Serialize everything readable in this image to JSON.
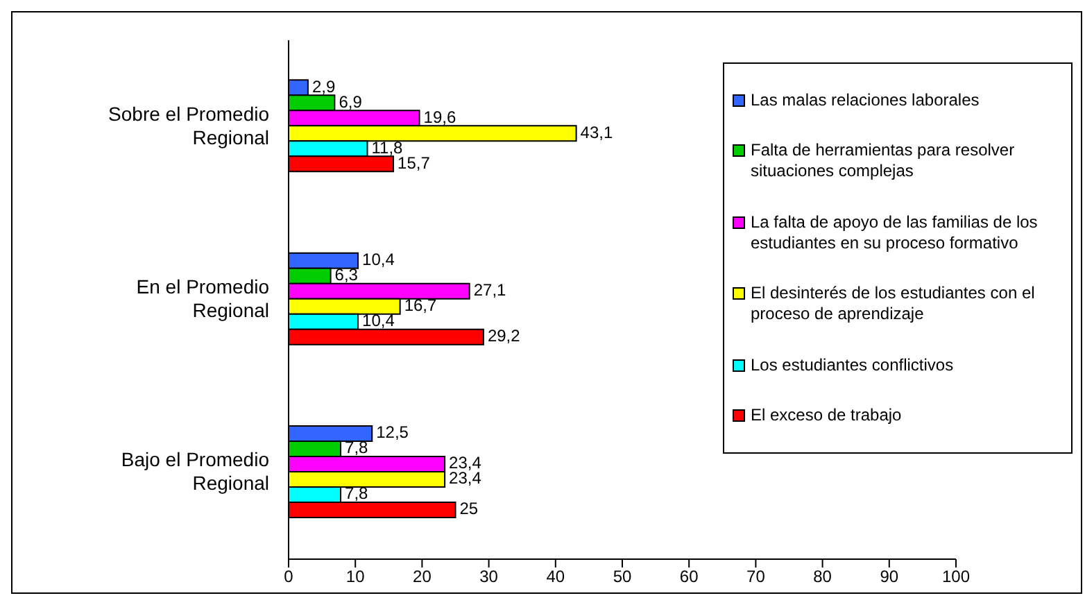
{
  "chart_data": {
    "type": "bar",
    "orientation": "horizontal",
    "categories": [
      "Sobre el Promedio Regional",
      "En el Promedio Regional",
      "Bajo el Promedio Regional"
    ],
    "series": [
      {
        "name": "Las malas relaciones laborales",
        "color": "#3366ff",
        "values": [
          2.9,
          10.4,
          12.5
        ],
        "value_labels": [
          "2,9",
          "10,4",
          "12,5"
        ]
      },
      {
        "name": "Falta de herramientas para resolver situaciones complejas",
        "color": "#00cc00",
        "values": [
          6.9,
          6.3,
          7.8
        ],
        "value_labels": [
          "6,9",
          "6,3",
          "7,8"
        ]
      },
      {
        "name": "La falta de apoyo de las familias de los estudiantes en su proceso formativo",
        "color": "#ff00ff",
        "values": [
          19.6,
          27.1,
          23.4
        ],
        "value_labels": [
          "19,6",
          "27,1",
          "23,4"
        ]
      },
      {
        "name": "El desinterés de los estudiantes con el proceso de aprendizaje",
        "color": "#ffff00",
        "values": [
          43.1,
          16.7,
          23.4
        ],
        "value_labels": [
          "43,1",
          "16,7",
          "23,4"
        ]
      },
      {
        "name": "Los estudiantes conflictivos",
        "color": "#00ffff",
        "values": [
          11.8,
          10.4,
          7.8
        ],
        "value_labels": [
          "11,8",
          "10,4",
          "7,8"
        ]
      },
      {
        "name": "El exceso de trabajo",
        "color": "#ff0000",
        "values": [
          15.7,
          29.2,
          25
        ],
        "value_labels": [
          "15,7",
          "29,2",
          "25"
        ]
      }
    ],
    "xlim": [
      0,
      100
    ],
    "xticks": [
      0,
      10,
      20,
      30,
      40,
      50,
      60,
      70,
      80,
      90,
      100
    ],
    "legend": "top right"
  }
}
